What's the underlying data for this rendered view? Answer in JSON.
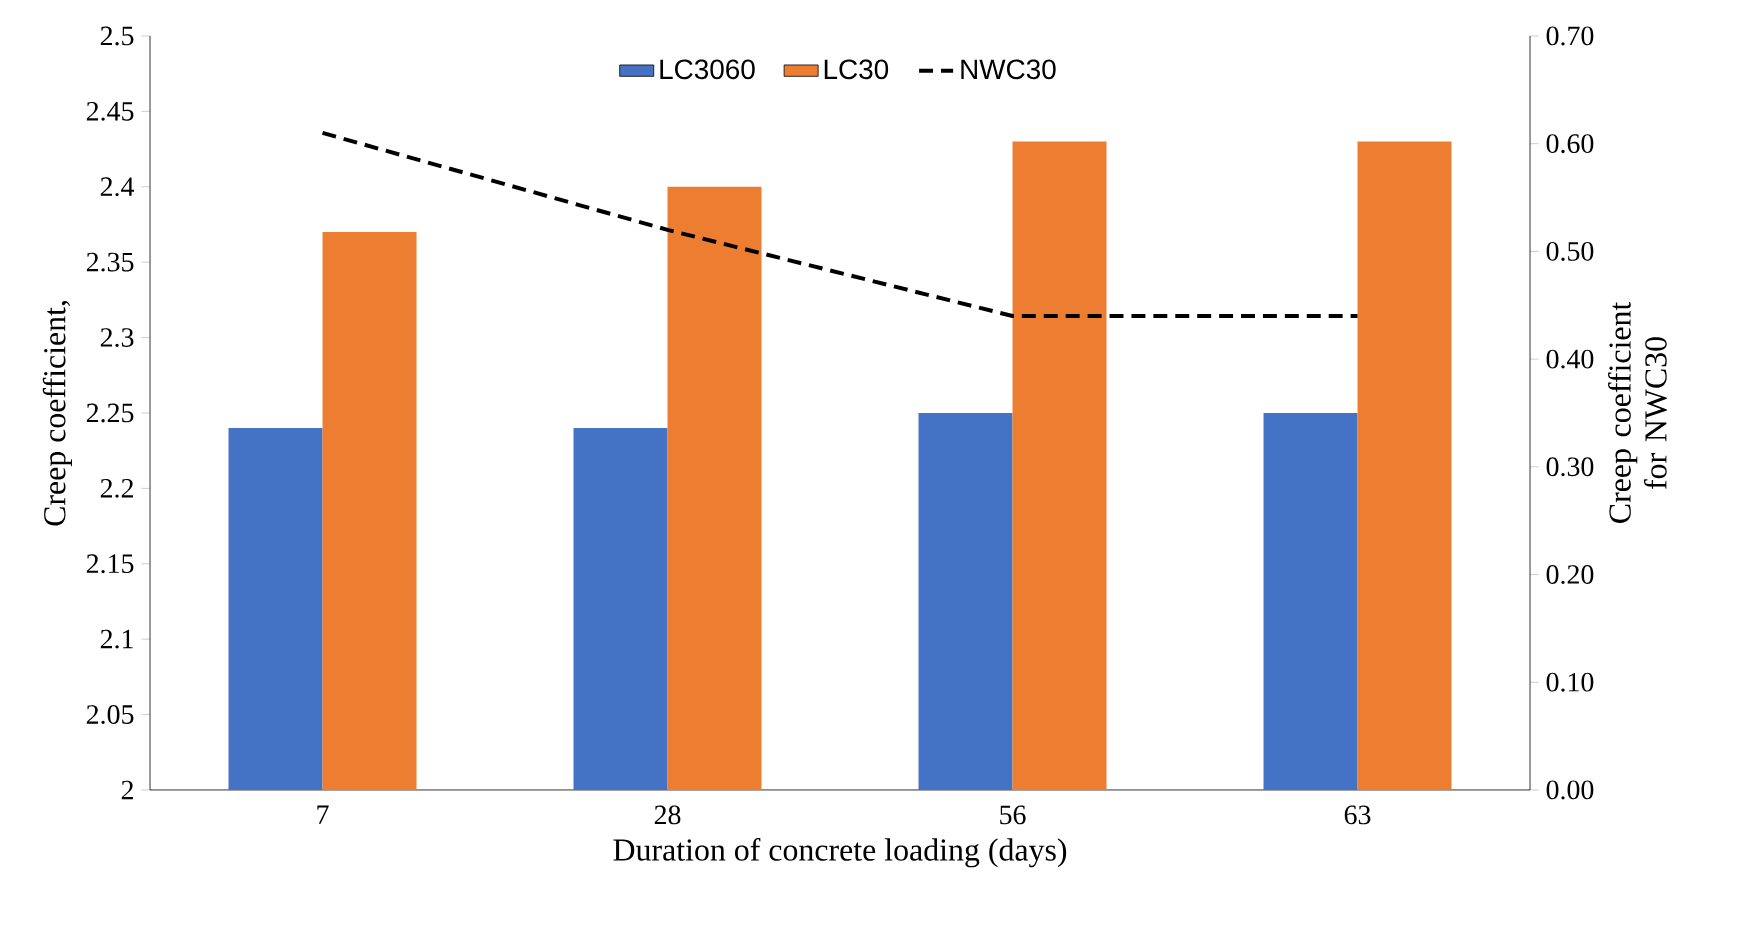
{
  "chart_data": {
    "type": "bar",
    "categories": [
      "7",
      "28",
      "56",
      "63"
    ],
    "series": [
      {
        "name": "LC3060",
        "color": "#4472c4",
        "values": [
          2.24,
          2.24,
          2.25,
          2.25
        ]
      },
      {
        "name": "LC30",
        "color": "#ed7d31",
        "values": [
          2.37,
          2.4,
          2.43,
          2.43
        ]
      },
      {
        "name": "NWC30",
        "type": "line",
        "axis": "y2",
        "color": "#000000",
        "line_style": "dashed",
        "values": [
          0.61,
          0.52,
          0.44,
          0.44
        ]
      }
    ],
    "xlabel": "Duration of concrete loading (days)",
    "ylabel": "Creep coefficient,",
    "y2label": "Creep coefficient for NWC30",
    "ylim": [
      2,
      2.5
    ],
    "yticks": [
      2,
      2.05,
      2.1,
      2.15,
      2.2,
      2.25,
      2.3,
      2.35,
      2.4,
      2.45,
      2.5
    ],
    "y2lim": [
      0,
      0.7
    ],
    "y2ticks": [
      {
        "value": 0,
        "label": "0.00"
      },
      {
        "value": 0.1,
        "label": "0.10"
      },
      {
        "value": 0.2,
        "label": "0.20"
      },
      {
        "value": 0.3,
        "label": "0.30"
      },
      {
        "value": 0.4,
        "label": "0.40"
      },
      {
        "value": 0.5,
        "label": "0.50"
      },
      {
        "value": 0.6,
        "label": "0.60"
      },
      {
        "value": 0.7,
        "label": "0.70"
      }
    ],
    "legend": "top"
  }
}
